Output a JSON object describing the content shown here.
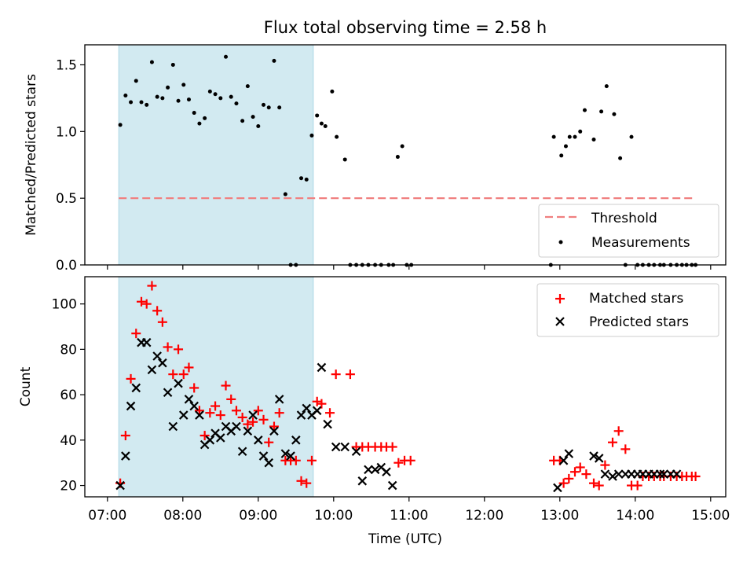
{
  "title": "Flux total observing time = 2.58 h",
  "xlabel": "Time (UTC)",
  "xticks": [
    "07:00",
    "08:00",
    "09:00",
    "10:00",
    "11:00",
    "12:00",
    "13:00",
    "14:00",
    "15:00"
  ],
  "top_panel": {
    "ylabel": "Matched/Predicted stars",
    "ylim": [
      0,
      1.65
    ],
    "yticks": [
      "0.0",
      "0.5",
      "1.0",
      "1.5"
    ],
    "legend": {
      "position": "lower-right",
      "threshold_label": "Threshold",
      "measurements_label": "Measurements"
    }
  },
  "bottom_panel": {
    "ylabel": "Count",
    "ylim": [
      15,
      112
    ],
    "yticks": [
      "20",
      "40",
      "60",
      "80",
      "100"
    ],
    "legend": {
      "position": "upper-right",
      "matched_label": "Matched stars",
      "predicted_label": "Predicted stars"
    }
  },
  "colors": {
    "shade": "#add8e6",
    "threshold": "#f08080",
    "matched": "#ff0000",
    "predicted": "#000000",
    "measurement": "#000000"
  },
  "chart_data": [
    {
      "type": "scatter",
      "panel": "top",
      "xlabel": "",
      "ylabel": "Matched/Predicted stars",
      "x_unit": "hours UTC",
      "xlim": [
        6.7,
        15.2
      ],
      "ylim": [
        0,
        1.65
      ],
      "shaded_span": [
        7.15,
        9.73
      ],
      "threshold": {
        "name": "Threshold",
        "y": 0.5,
        "x": [
          7.15,
          14.8
        ]
      },
      "series": [
        {
          "name": "Measurements",
          "x": [
            7.17,
            7.24,
            7.31,
            7.38,
            7.45,
            7.52,
            7.59,
            7.66,
            7.73,
            7.8,
            7.87,
            7.94,
            8.01,
            8.08,
            8.15,
            8.22,
            8.29,
            8.36,
            8.43,
            8.5,
            8.57,
            8.64,
            8.71,
            8.79,
            8.86,
            8.93,
            9.0,
            9.07,
            9.14,
            9.21,
            9.28,
            9.36,
            9.43,
            9.5,
            9.57,
            9.64,
            9.71,
            9.78,
            9.84,
            9.89,
            9.98,
            10.04,
            10.15,
            10.22,
            10.3,
            10.38,
            10.46,
            10.55,
            10.63,
            10.73,
            10.79,
            10.85,
            10.91,
            10.97,
            11.03,
            12.88,
            12.92,
            13.02,
            13.08,
            13.13,
            13.2,
            13.27,
            13.33,
            13.45,
            13.55,
            13.62,
            13.72,
            13.8,
            13.87,
            13.95,
            14.03,
            14.1,
            14.18,
            14.25,
            14.33,
            14.38,
            14.47,
            14.55,
            14.62,
            14.68,
            14.75,
            14.8
          ],
          "y": [
            1.05,
            1.27,
            1.22,
            1.38,
            1.22,
            1.2,
            1.52,
            1.26,
            1.25,
            1.33,
            1.5,
            1.23,
            1.35,
            1.24,
            1.14,
            1.06,
            1.1,
            1.3,
            1.28,
            1.25,
            1.56,
            1.26,
            1.21,
            1.08,
            1.34,
            1.11,
            1.04,
            1.2,
            1.18,
            1.53,
            1.18,
            0.53,
            0.0,
            0.0,
            0.65,
            0.64,
            0.97,
            1.12,
            1.06,
            1.04,
            1.3,
            0.96,
            0.79,
            0.0,
            0.0,
            0.0,
            0.0,
            0.0,
            0.0,
            0.0,
            0.0,
            0.81,
            0.89,
            0.0,
            0.0,
            0.0,
            0.96,
            0.82,
            0.89,
            0.96,
            0.96,
            1.0,
            1.16,
            0.94,
            1.15,
            1.34,
            1.13,
            0.8,
            0.0,
            0.96,
            0.0,
            0.0,
            0.0,
            0.0,
            0.0,
            0.0,
            0.0,
            0.0,
            0.0,
            0.0,
            0.0,
            0.0
          ]
        }
      ]
    },
    {
      "type": "scatter",
      "panel": "bottom",
      "xlabel": "Time (UTC)",
      "ylabel": "Count",
      "x_unit": "hours UTC",
      "xlim": [
        6.7,
        15.2
      ],
      "ylim": [
        15,
        112
      ],
      "shaded_span": [
        7.15,
        9.73
      ],
      "series": [
        {
          "name": "Matched stars",
          "marker": "+",
          "x": [
            7.17,
            7.24,
            7.31,
            7.38,
            7.45,
            7.52,
            7.59,
            7.66,
            7.73,
            7.8,
            7.87,
            7.94,
            8.01,
            8.08,
            8.15,
            8.22,
            8.29,
            8.36,
            8.43,
            8.5,
            8.57,
            8.64,
            8.71,
            8.79,
            8.86,
            8.93,
            9.0,
            9.07,
            9.14,
            9.21,
            9.28,
            9.36,
            9.43,
            9.5,
            9.57,
            9.64,
            9.71,
            9.78,
            9.84,
            9.95,
            10.03,
            10.22,
            10.3,
            10.38,
            10.46,
            10.55,
            10.63,
            10.7,
            10.78,
            10.86,
            10.94,
            11.02,
            12.92,
            13.0,
            13.05,
            13.12,
            13.2,
            13.27,
            13.35,
            13.45,
            13.52,
            13.6,
            13.7,
            13.78,
            13.87,
            13.95,
            14.03,
            14.1,
            14.18,
            14.25,
            14.33,
            14.38,
            14.47,
            14.55,
            14.62,
            14.68,
            14.75,
            14.8
          ],
          "y": [
            21,
            42,
            67,
            87,
            101,
            100,
            108,
            97,
            92,
            81,
            69,
            80,
            69,
            72,
            63,
            53,
            42,
            52,
            55,
            51,
            64,
            58,
            53,
            50,
            47,
            48,
            53,
            49,
            39,
            46,
            52,
            31,
            31,
            31,
            22,
            21,
            31,
            57,
            56,
            52,
            69,
            69,
            37,
            37,
            37,
            37,
            37,
            37,
            37,
            30,
            31,
            31,
            31,
            31,
            21,
            23,
            26,
            28,
            25,
            21,
            20,
            29,
            39,
            44,
            36,
            20,
            20,
            24,
            24,
            24,
            24,
            24,
            24,
            24,
            24,
            24,
            24,
            24
          ]
        },
        {
          "name": "Predicted stars",
          "marker": "x",
          "x": [
            7.17,
            7.24,
            7.31,
            7.38,
            7.45,
            7.52,
            7.59,
            7.66,
            7.73,
            7.8,
            7.87,
            7.94,
            8.01,
            8.08,
            8.15,
            8.22,
            8.29,
            8.36,
            8.43,
            8.5,
            8.57,
            8.64,
            8.71,
            8.79,
            8.86,
            8.93,
            9.0,
            9.07,
            9.14,
            9.21,
            9.28,
            9.36,
            9.43,
            9.5,
            9.57,
            9.64,
            9.71,
            9.78,
            9.84,
            9.92,
            10.03,
            10.15,
            10.3,
            10.38,
            10.46,
            10.55,
            10.63,
            10.7,
            10.78,
            12.97,
            13.05,
            13.12,
            13.45,
            13.52,
            13.6,
            13.7,
            13.78,
            13.87,
            13.95,
            14.03,
            14.1,
            14.18,
            14.25,
            14.33,
            14.38,
            14.47,
            14.55
          ],
          "y": [
            20,
            33,
            55,
            63,
            83,
            83,
            71,
            77,
            74,
            61,
            46,
            65,
            51,
            58,
            55,
            51,
            38,
            40,
            43,
            41,
            46,
            44,
            46,
            35,
            44,
            51,
            40,
            33,
            30,
            44,
            58,
            34,
            33,
            40,
            51,
            54,
            51,
            53,
            72,
            47,
            37,
            37,
            35,
            22,
            27,
            27,
            28,
            26,
            20,
            19,
            31,
            34,
            33,
            32,
            25,
            24,
            25,
            25,
            25,
            25,
            25,
            25,
            25,
            25,
            25,
            25,
            25
          ]
        }
      ]
    }
  ]
}
